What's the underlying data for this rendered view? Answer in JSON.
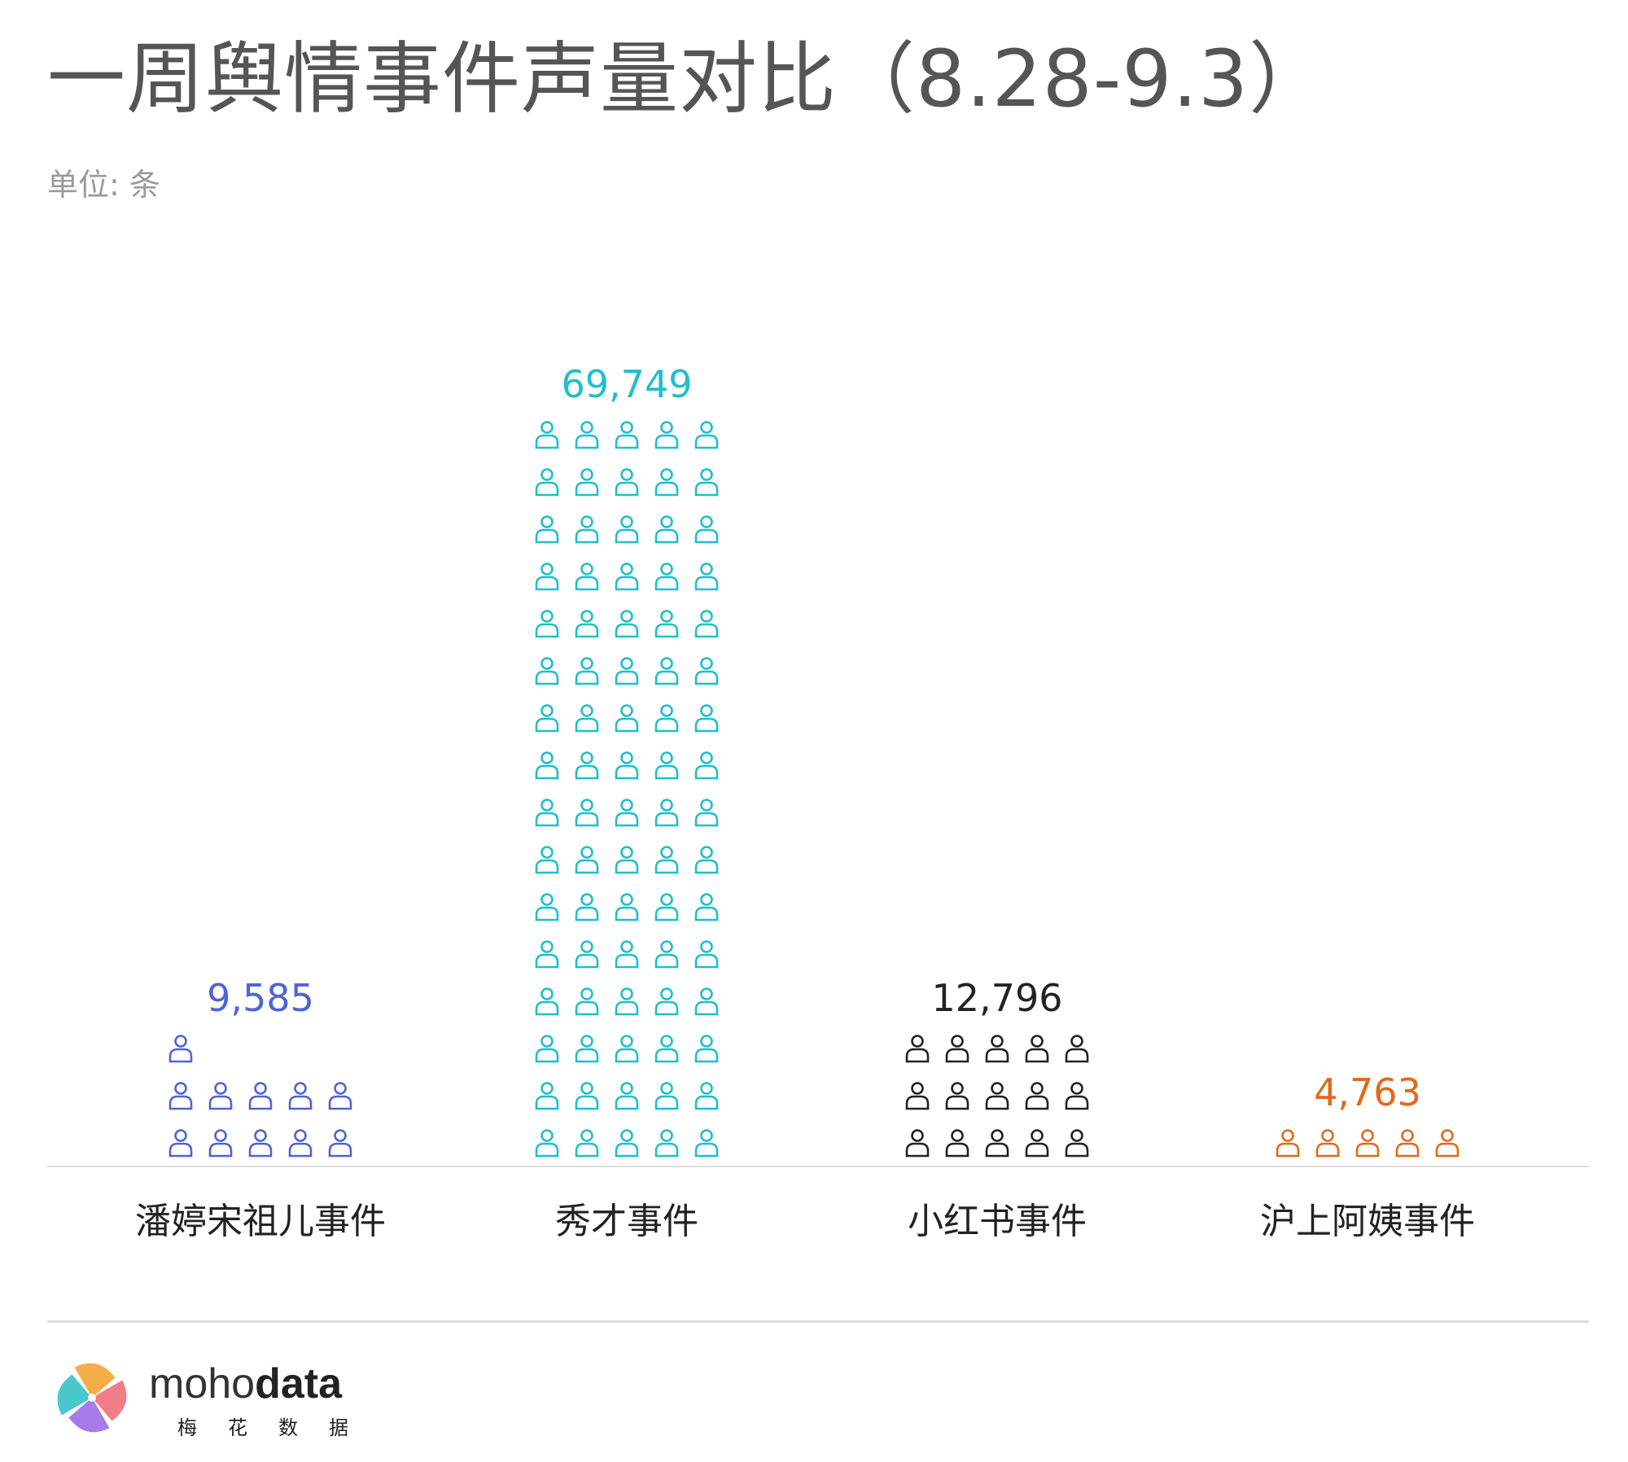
{
  "title": "一周舆情事件声量对比（8.28-9.3）",
  "subtitle": "单位: 条",
  "chart_data": {
    "type": "bar",
    "style": "pictogram",
    "icon": "person-outline-icon",
    "categories": [
      "潘婷宋祖儿事件",
      "秀才事件",
      "小红书事件",
      "沪上阿姨事件"
    ],
    "values": [
      9585,
      69749,
      12796,
      4763
    ],
    "value_labels": [
      "9,585",
      "69,749",
      "12,796",
      "4,763"
    ],
    "icons_shown": [
      11,
      80,
      15,
      5
    ],
    "colors": [
      "#4e64d6",
      "#1fbfcb",
      "#222222",
      "#e06a1b"
    ],
    "grid": false,
    "legend": "none"
  },
  "logo": {
    "name_light": "moho",
    "name_bold": "data",
    "subtitle": "梅花数据",
    "petal_colors": [
      "#f3a535",
      "#ef6f7d",
      "#9b6ee6",
      "#36c3c6"
    ]
  }
}
